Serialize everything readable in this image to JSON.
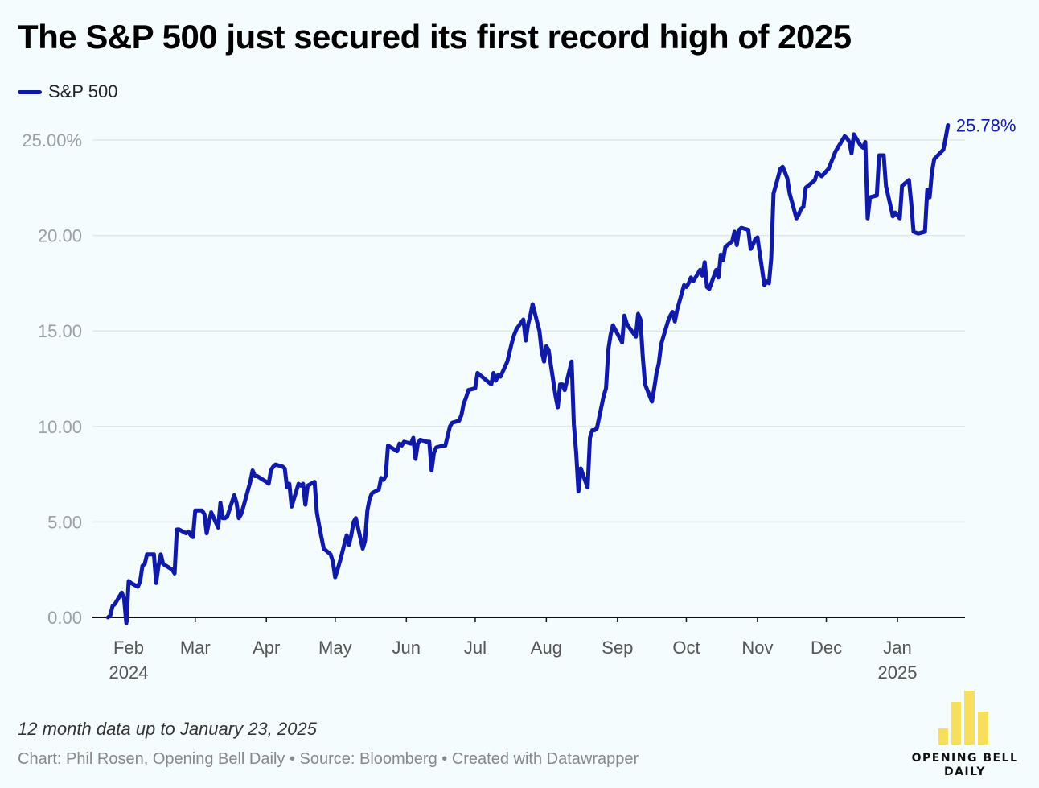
{
  "title": "The S&P 500 just secured its first record high of 2025",
  "note": "12 month data up to January 23, 2025",
  "credits": "Chart: Phil Rosen, Opening Bell Daily • Source: Bloomberg • Created with Datawrapper",
  "logo": {
    "line1": "OPENING BELL",
    "line2": "DAILY",
    "color": "#f7de5c"
  },
  "colors": {
    "line": "#101aa8",
    "grid": "#dfe6ec",
    "axis": "#111111",
    "tick": "#9aa0a6",
    "month": "#555555"
  },
  "chart_data": {
    "type": "line",
    "title": "The S&P 500 just secured its first record high of 2025",
    "xlabel": "",
    "ylabel": "",
    "ylim": [
      0,
      25
    ],
    "y_ticks": [
      "0.00",
      "5.00",
      "10.00",
      "15.00",
      "20.00",
      "25.00%"
    ],
    "x_ticks": [
      {
        "month": "Feb",
        "year": "2024"
      },
      {
        "month": "Mar",
        "year": ""
      },
      {
        "month": "Apr",
        "year": ""
      },
      {
        "month": "May",
        "year": ""
      },
      {
        "month": "Jun",
        "year": ""
      },
      {
        "month": "Jul",
        "year": ""
      },
      {
        "month": "Aug",
        "year": ""
      },
      {
        "month": "Sep",
        "year": ""
      },
      {
        "month": "Oct",
        "year": ""
      },
      {
        "month": "Nov",
        "year": ""
      },
      {
        "month": "Dec",
        "year": ""
      },
      {
        "month": "Jan",
        "year": "2025"
      }
    ],
    "grid": true,
    "legend": "top-left",
    "end_label": "25.78%",
    "series": [
      {
        "name": "S&P 500",
        "color": "#101aa8",
        "x": [
          "2024-01-23",
          "2024-01-24",
          "2024-01-25",
          "2024-01-26",
          "2024-01-29",
          "2024-01-30",
          "2024-01-31",
          "2024-02-01",
          "2024-02-02",
          "2024-02-05",
          "2024-02-06",
          "2024-02-07",
          "2024-02-08",
          "2024-02-09",
          "2024-02-12",
          "2024-02-13",
          "2024-02-14",
          "2024-02-15",
          "2024-02-16",
          "2024-02-20",
          "2024-02-21",
          "2024-02-22",
          "2024-02-23",
          "2024-02-26",
          "2024-02-27",
          "2024-02-28",
          "2024-02-29",
          "2024-03-01",
          "2024-03-04",
          "2024-03-05",
          "2024-03-06",
          "2024-03-07",
          "2024-03-08",
          "2024-03-11",
          "2024-03-12",
          "2024-03-13",
          "2024-03-14",
          "2024-03-15",
          "2024-03-18",
          "2024-03-19",
          "2024-03-20",
          "2024-03-21",
          "2024-03-22",
          "2024-03-25",
          "2024-03-26",
          "2024-03-27",
          "2024-03-28",
          "2024-04-01",
          "2024-04-02",
          "2024-04-03",
          "2024-04-04",
          "2024-04-05",
          "2024-04-08",
          "2024-04-09",
          "2024-04-10",
          "2024-04-11",
          "2024-04-12",
          "2024-04-15",
          "2024-04-16",
          "2024-04-17",
          "2024-04-18",
          "2024-04-19",
          "2024-04-22",
          "2024-04-23",
          "2024-04-24",
          "2024-04-25",
          "2024-04-26",
          "2024-04-29",
          "2024-04-30",
          "2024-05-01",
          "2024-05-02",
          "2024-05-03",
          "2024-05-06",
          "2024-05-07",
          "2024-05-08",
          "2024-05-09",
          "2024-05-10",
          "2024-05-13",
          "2024-05-14",
          "2024-05-15",
          "2024-05-16",
          "2024-05-17",
          "2024-05-20",
          "2024-05-21",
          "2024-05-22",
          "2024-05-23",
          "2024-05-24",
          "2024-05-28",
          "2024-05-29",
          "2024-05-30",
          "2024-05-31",
          "2024-06-03",
          "2024-06-04",
          "2024-06-05",
          "2024-06-06",
          "2024-06-07",
          "2024-06-10",
          "2024-06-11",
          "2024-06-12",
          "2024-06-13",
          "2024-06-14",
          "2024-06-17",
          "2024-06-18",
          "2024-06-20",
          "2024-06-21",
          "2024-06-24",
          "2024-06-25",
          "2024-06-26",
          "2024-06-27",
          "2024-06-28",
          "2024-07-01",
          "2024-07-02",
          "2024-07-03",
          "2024-07-05",
          "2024-07-08",
          "2024-07-09",
          "2024-07-10",
          "2024-07-11",
          "2024-07-12",
          "2024-07-15",
          "2024-07-16",
          "2024-07-17",
          "2024-07-18",
          "2024-07-19",
          "2024-07-22",
          "2024-07-23",
          "2024-07-24",
          "2024-07-25",
          "2024-07-26",
          "2024-07-29",
          "2024-07-30",
          "2024-07-31",
          "2024-08-01",
          "2024-08-02",
          "2024-08-05",
          "2024-08-06",
          "2024-08-07",
          "2024-08-08",
          "2024-08-09",
          "2024-08-12",
          "2024-08-13",
          "2024-08-14",
          "2024-08-15",
          "2024-08-16",
          "2024-08-19",
          "2024-08-20",
          "2024-08-21",
          "2024-08-22",
          "2024-08-23",
          "2024-08-26",
          "2024-08-27",
          "2024-08-28",
          "2024-08-29",
          "2024-08-30",
          "2024-09-03",
          "2024-09-04",
          "2024-09-05",
          "2024-09-06",
          "2024-09-09",
          "2024-09-10",
          "2024-09-11",
          "2024-09-12",
          "2024-09-13",
          "2024-09-16",
          "2024-09-17",
          "2024-09-18",
          "2024-09-19",
          "2024-09-20",
          "2024-09-23",
          "2024-09-24",
          "2024-09-25",
          "2024-09-26",
          "2024-09-27",
          "2024-09-30",
          "2024-10-01",
          "2024-10-02",
          "2024-10-03",
          "2024-10-04",
          "2024-10-07",
          "2024-10-08",
          "2024-10-09",
          "2024-10-10",
          "2024-10-11",
          "2024-10-14",
          "2024-10-15",
          "2024-10-16",
          "2024-10-17",
          "2024-10-18",
          "2024-10-21",
          "2024-10-22",
          "2024-10-23",
          "2024-10-24",
          "2024-10-25",
          "2024-10-28",
          "2024-10-29",
          "2024-10-30",
          "2024-10-31",
          "2024-11-01",
          "2024-11-04",
          "2024-11-05",
          "2024-11-06",
          "2024-11-07",
          "2024-11-08",
          "2024-11-11",
          "2024-11-12",
          "2024-11-13",
          "2024-11-14",
          "2024-11-15",
          "2024-11-18",
          "2024-11-19",
          "2024-11-20",
          "2024-11-21",
          "2024-11-22",
          "2024-11-25",
          "2024-11-26",
          "2024-11-27",
          "2024-11-29",
          "2024-12-02",
          "2024-12-03",
          "2024-12-04",
          "2024-12-05",
          "2024-12-06",
          "2024-12-09",
          "2024-12-10",
          "2024-12-11",
          "2024-12-12",
          "2024-12-13",
          "2024-12-16",
          "2024-12-17",
          "2024-12-18",
          "2024-12-19",
          "2024-12-20",
          "2024-12-23",
          "2024-12-24",
          "2024-12-26",
          "2024-12-27",
          "2024-12-30",
          "2024-12-31",
          "2025-01-02",
          "2025-01-03",
          "2025-01-06",
          "2025-01-07",
          "2025-01-08",
          "2025-01-10",
          "2025-01-13",
          "2025-01-14",
          "2025-01-15",
          "2025-01-16",
          "2025-01-17",
          "2025-01-21",
          "2025-01-22",
          "2025-01-23"
        ],
        "values": [
          0.0,
          0.1,
          0.6,
          0.7,
          1.3,
          1.0,
          -0.3,
          1.9,
          1.8,
          1.6,
          1.9,
          2.7,
          2.8,
          3.3,
          3.3,
          1.8,
          2.7,
          3.3,
          2.8,
          2.5,
          2.3,
          4.6,
          4.6,
          4.4,
          4.5,
          4.3,
          4.2,
          5.6,
          5.6,
          5.4,
          4.4,
          5.0,
          5.5,
          4.7,
          6.0,
          5.2,
          5.2,
          5.3,
          6.4,
          6.0,
          5.2,
          5.4,
          5.8,
          7.1,
          7.7,
          7.4,
          7.4,
          7.1,
          7.0,
          7.7,
          7.9,
          8.0,
          7.9,
          7.8,
          6.8,
          7.0,
          5.8,
          7.0,
          6.9,
          7.0,
          5.9,
          6.9,
          7.1,
          5.5,
          4.8,
          4.2,
          3.6,
          3.3,
          2.9,
          2.1,
          2.5,
          2.9,
          4.3,
          3.8,
          4.3,
          5.0,
          5.2,
          3.6,
          4.0,
          5.6,
          6.2,
          6.5,
          6.7,
          7.3,
          7.2,
          7.4,
          9.0,
          8.7,
          9.1,
          9.0,
          9.2,
          9.1,
          9.4,
          8.3,
          9.1,
          9.3,
          9.2,
          9.2,
          7.7,
          8.6,
          8.9,
          9.0,
          9.0,
          10.0,
          10.2,
          10.3,
          10.6,
          11.2,
          11.5,
          11.9,
          12.0,
          12.8,
          12.7,
          12.5,
          12.2,
          12.8,
          12.4,
          12.7,
          12.6,
          13.4,
          13.9,
          14.4,
          14.8,
          15.1,
          15.6,
          14.5,
          15.3,
          15.8,
          16.4,
          15.0,
          13.9,
          13.4,
          14.2,
          14.0,
          11.6,
          11.0,
          12.2,
          12.2,
          11.9,
          13.4,
          10.1,
          8.6,
          6.6,
          7.8,
          6.8,
          9.4,
          9.8,
          9.8,
          9.9,
          11.6,
          12.0,
          14.0,
          14.8,
          15.3,
          14.4,
          15.8,
          15.4,
          15.2,
          14.7,
          15.9,
          15.6,
          13.7,
          12.2,
          11.3,
          12.0,
          12.8,
          13.3,
          14.3,
          15.5,
          15.8,
          16.0,
          15.5,
          16.1,
          17.4,
          17.3,
          17.5,
          17.8,
          17.6,
          18.2,
          17.9,
          18.6,
          17.3,
          17.2,
          18.2,
          17.8,
          19.0,
          18.7,
          19.4,
          19.7,
          20.2,
          19.5,
          20.3,
          20.4,
          20.3,
          19.3,
          19.5,
          19.8,
          19.9,
          17.4,
          17.6,
          17.5,
          18.8,
          22.2,
          23.5,
          23.6,
          23.3,
          23.0,
          22.2,
          20.9,
          21.1,
          21.4,
          21.5,
          22.5,
          22.8,
          22.9,
          23.3,
          23.1,
          23.5,
          23.8,
          24.1,
          24.4,
          24.6,
          25.2,
          25.1,
          24.9,
          24.3,
          25.3,
          24.7,
          24.6,
          24.9,
          20.9,
          22.0,
          22.1,
          24.2,
          24.2,
          22.6,
          21.0,
          21.2,
          20.9,
          22.6,
          22.9,
          21.7,
          20.2,
          20.1,
          20.2,
          22.4,
          22.0,
          23.3,
          24.0,
          24.5,
          25.1,
          25.78
        ]
      }
    ]
  }
}
